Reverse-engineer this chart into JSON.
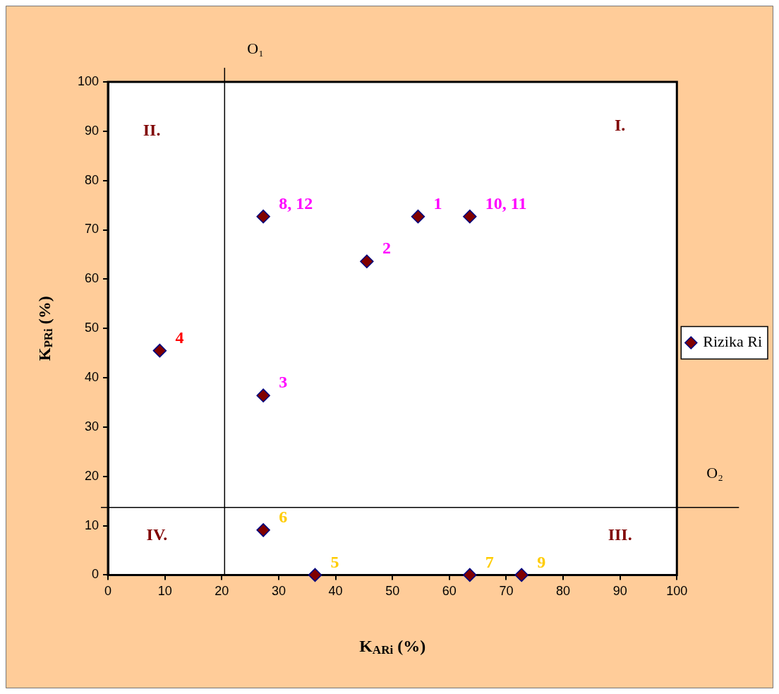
{
  "chart_data": {
    "type": "scatter",
    "xlabel": "K$_{ARi}$ (%)",
    "ylabel": "K$_{PRi}$ (%)",
    "x": [
      54.5,
      45.5,
      27.3,
      9.1,
      36.4,
      27.3,
      63.6,
      27.3,
      72.7,
      63.6
    ],
    "series": [
      {
        "name": "Rizika Ri",
        "color": "#800000",
        "values": [
          72.7,
          63.6,
          36.4,
          45.5,
          0,
          9.1,
          0,
          72.7,
          0,
          72.7
        ]
      }
    ],
    "xlim": [
      0,
      100
    ],
    "ylim": [
      0,
      100
    ],
    "xticks": [
      0,
      10,
      20,
      30,
      40,
      50,
      60,
      70,
      80,
      90,
      100
    ],
    "yticks": [
      0,
      10,
      20,
      30,
      40,
      50,
      60,
      70,
      80,
      90,
      100
    ],
    "ref_lines": [
      {
        "axis": "x",
        "value": 20.5,
        "label": "O₁",
        "color": "#000000"
      },
      {
        "axis": "y",
        "value": 13.7,
        "label": "O₂",
        "color": "#000000"
      }
    ],
    "annotations": [
      "I.",
      "II.",
      "III.",
      "IV.",
      {
        "text": "1",
        "x": 54.5,
        "y": 72.7
      },
      {
        "text": "2",
        "x": 45.5,
        "y": 63.6
      },
      {
        "text": "3",
        "x": 27.3,
        "y": 36.4
      },
      {
        "text": "4",
        "x": 9.1,
        "y": 45.5
      },
      {
        "text": "5",
        "x": 36.4,
        "y": 0
      },
      {
        "text": "6",
        "x": 27.3,
        "y": 9.1
      },
      {
        "text": "7",
        "x": 63.6,
        "y": 0
      },
      {
        "text": "8, 12",
        "x": 27.3,
        "y": 72.7
      },
      {
        "text": "9",
        "x": 72.7,
        "y": 0
      },
      {
        "text": "10, 11",
        "x": 63.6,
        "y": 72.7
      }
    ],
    "marker": "diamond",
    "grid": false,
    "legend": "right"
  }
}
